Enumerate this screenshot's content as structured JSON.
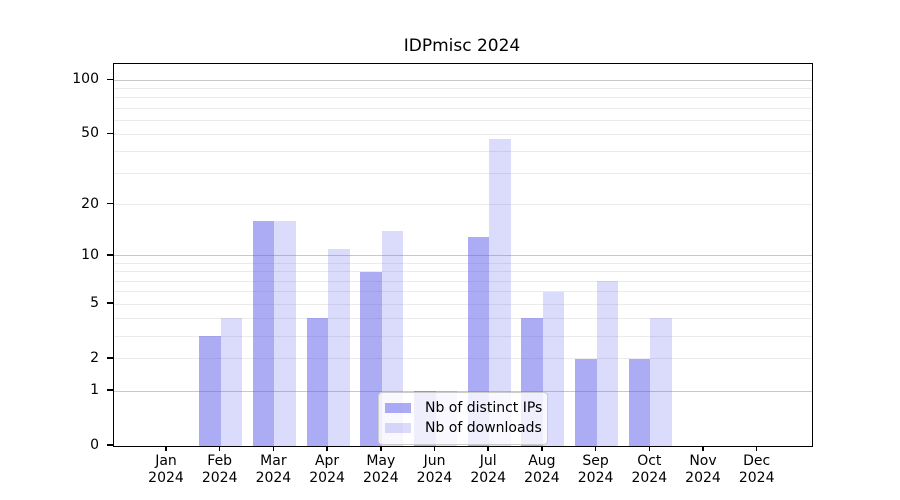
{
  "title": "IDPmisc 2024",
  "colors": {
    "ips_bar": "rgba(90,90,235,0.5)",
    "downloads_bar": "rgba(90,90,235,0.22)",
    "grid_major": "#c8c8c8",
    "grid_minor": "#ebebeb",
    "axis": "#000000",
    "legend_border": "#cccccc"
  },
  "legend": {
    "items": [
      {
        "label": "Nb of distinct IPs",
        "series_key": "ips"
      },
      {
        "label": "Nb of downloads",
        "series_key": "downloads"
      }
    ]
  },
  "chart_data": {
    "type": "bar",
    "title": "IDPmisc 2024",
    "categories": [
      "Jan",
      "Feb",
      "Mar",
      "Apr",
      "May",
      "Jun",
      "Jul",
      "Aug",
      "Sep",
      "Oct",
      "Nov",
      "Dec"
    ],
    "category_year": "2024",
    "series": [
      {
        "name": "Nb of distinct IPs",
        "key": "ips",
        "values": [
          0,
          3,
          16,
          4,
          8,
          1,
          13,
          4,
          2,
          2,
          0,
          0
        ]
      },
      {
        "name": "Nb of downloads",
        "key": "downloads",
        "values": [
          0,
          4,
          16,
          11,
          14,
          1,
          47,
          6,
          7,
          4,
          0,
          0
        ]
      }
    ],
    "yscale": "log1p",
    "yticks": [
      0,
      1,
      2,
      5,
      10,
      20,
      50,
      100
    ],
    "grid_major_at": [
      1,
      10,
      100
    ],
    "grid_minor_at": [
      2,
      3,
      4,
      5,
      6,
      7,
      8,
      9,
      20,
      30,
      40,
      50,
      60,
      70,
      80,
      90
    ],
    "ylim": [
      0,
      123
    ],
    "xlabel": "",
    "ylabel": "",
    "grid": "horizontal",
    "legend_position": "lower center"
  }
}
